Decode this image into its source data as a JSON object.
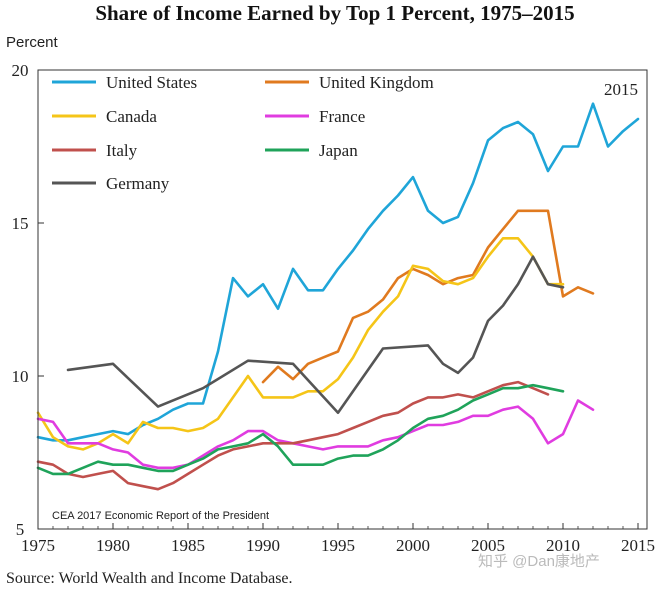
{
  "chart_data": {
    "type": "line",
    "title": "Share of Income Earned by Top 1 Percent, 1975–2015",
    "ylabel": "Percent",
    "xlabel": "",
    "xlim": [
      1975,
      2016
    ],
    "ylim": [
      5,
      20
    ],
    "xticks": [
      1975,
      1980,
      1985,
      1990,
      1995,
      2000,
      2005,
      2010,
      2015
    ],
    "yticks": [
      5,
      10,
      15,
      20
    ],
    "annotation": "2015",
    "note": "CEA 2017 Economic Report of the President",
    "source": "Source: World Wealth and Income Database.",
    "watermark": "知乎 @Dan康地产",
    "legend_position": "top-left",
    "series": [
      {
        "name": "United States",
        "color": "#1fa5d8",
        "x": [
          1975,
          1976,
          1977,
          1978,
          1979,
          1980,
          1981,
          1982,
          1983,
          1984,
          1985,
          1986,
          1987,
          1988,
          1989,
          1990,
          1991,
          1992,
          1993,
          1994,
          1995,
          1996,
          1997,
          1998,
          1999,
          2000,
          2001,
          2002,
          2003,
          2004,
          2005,
          2006,
          2007,
          2008,
          2009,
          2010,
          2011,
          2012,
          2013,
          2014,
          2015
        ],
        "values": [
          8.0,
          7.9,
          7.9,
          8.0,
          8.1,
          8.2,
          8.1,
          8.4,
          8.6,
          8.9,
          9.1,
          9.1,
          10.8,
          13.2,
          12.6,
          13.0,
          12.2,
          13.5,
          12.8,
          12.8,
          13.5,
          14.1,
          14.8,
          15.4,
          15.9,
          16.5,
          15.4,
          15.0,
          15.2,
          16.3,
          17.7,
          18.1,
          18.3,
          17.9,
          16.7,
          17.5,
          17.5,
          18.9,
          17.5,
          18.0,
          18.4
        ]
      },
      {
        "name": "United Kingdom",
        "color": "#e07a1f",
        "x": [
          1990,
          1991,
          1992,
          1993,
          1994,
          1995,
          1996,
          1997,
          1998,
          1999,
          2000,
          2001,
          2002,
          2003,
          2004,
          2005,
          2006,
          2007,
          2008,
          2009,
          2010,
          2011,
          2012
        ],
        "values": [
          9.8,
          10.3,
          9.9,
          10.4,
          10.6,
          10.8,
          11.9,
          12.1,
          12.5,
          13.2,
          13.5,
          13.3,
          13.0,
          13.2,
          13.3,
          14.2,
          14.8,
          15.4,
          15.4,
          15.4,
          12.6,
          12.9,
          12.7
        ]
      },
      {
        "name": "Canada",
        "color": "#f5c518",
        "x": [
          1975,
          1976,
          1977,
          1978,
          1979,
          1980,
          1981,
          1982,
          1983,
          1984,
          1985,
          1986,
          1987,
          1988,
          1989,
          1990,
          1991,
          1992,
          1993,
          1994,
          1995,
          1996,
          1997,
          1998,
          1999,
          2000,
          2001,
          2002,
          2003,
          2004,
          2005,
          2006,
          2007,
          2008,
          2009,
          2010
        ],
        "values": [
          8.8,
          8.0,
          7.7,
          7.6,
          7.8,
          8.1,
          7.8,
          8.5,
          8.3,
          8.3,
          8.2,
          8.3,
          8.6,
          9.3,
          10.0,
          9.3,
          9.3,
          9.3,
          9.5,
          9.5,
          9.9,
          10.6,
          11.5,
          12.1,
          12.6,
          13.6,
          13.5,
          13.1,
          13.0,
          13.2,
          13.9,
          14.5,
          14.5,
          13.9,
          13.0,
          13.0
        ]
      },
      {
        "name": "France",
        "color": "#e03ce0",
        "x": [
          1975,
          1976,
          1977,
          1978,
          1979,
          1980,
          1981,
          1982,
          1983,
          1984,
          1985,
          1986,
          1987,
          1988,
          1989,
          1990,
          1991,
          1992,
          1993,
          1994,
          1995,
          1996,
          1997,
          1998,
          1999,
          2000,
          2001,
          2002,
          2003,
          2004,
          2005,
          2006,
          2007,
          2008,
          2009,
          2010,
          2011,
          2012
        ],
        "values": [
          8.6,
          8.5,
          7.8,
          7.8,
          7.8,
          7.6,
          7.5,
          7.1,
          7.0,
          7.0,
          7.1,
          7.4,
          7.7,
          7.9,
          8.2,
          8.2,
          7.9,
          7.8,
          7.7,
          7.6,
          7.7,
          7.7,
          7.7,
          7.9,
          8.0,
          8.2,
          8.4,
          8.4,
          8.5,
          8.7,
          8.7,
          8.9,
          9.0,
          8.6,
          7.8,
          8.1,
          9.2,
          8.9
        ]
      },
      {
        "name": "Italy",
        "color": "#c0504d",
        "x": [
          1975,
          1976,
          1977,
          1978,
          1979,
          1980,
          1981,
          1982,
          1983,
          1984,
          1985,
          1986,
          1987,
          1988,
          1989,
          1990,
          1991,
          1992,
          1993,
          1994,
          1995,
          1996,
          1997,
          1998,
          1999,
          2000,
          2001,
          2002,
          2003,
          2004,
          2005,
          2006,
          2007,
          2008,
          2009
        ],
        "values": [
          7.2,
          7.1,
          6.8,
          6.7,
          6.8,
          6.9,
          6.5,
          6.4,
          6.3,
          6.5,
          6.8,
          7.1,
          7.4,
          7.6,
          7.7,
          7.8,
          7.8,
          7.8,
          7.9,
          8.0,
          8.1,
          8.3,
          8.5,
          8.7,
          8.8,
          9.1,
          9.3,
          9.3,
          9.4,
          9.3,
          9.5,
          9.7,
          9.8,
          9.6,
          9.4
        ]
      },
      {
        "name": "Japan",
        "color": "#1fa35a",
        "x": [
          1975,
          1976,
          1977,
          1978,
          1979,
          1980,
          1981,
          1982,
          1983,
          1984,
          1985,
          1986,
          1987,
          1988,
          1989,
          1990,
          1991,
          1992,
          1993,
          1994,
          1995,
          1996,
          1997,
          1998,
          1999,
          2000,
          2001,
          2002,
          2003,
          2004,
          2005,
          2006,
          2007,
          2008,
          2009,
          2010
        ],
        "values": [
          7.0,
          6.8,
          6.8,
          7.0,
          7.2,
          7.1,
          7.1,
          7.0,
          6.9,
          6.9,
          7.1,
          7.3,
          7.6,
          7.7,
          7.8,
          8.1,
          7.7,
          7.1,
          7.1,
          7.1,
          7.3,
          7.4,
          7.4,
          7.6,
          7.9,
          8.3,
          8.6,
          8.7,
          8.9,
          9.2,
          9.4,
          9.6,
          9.6,
          9.7,
          9.6,
          9.5
        ]
      },
      {
        "name": "Germany",
        "color": "#555555",
        "x": [
          1977,
          1980,
          1983,
          1986,
          1989,
          1992,
          1995,
          1998,
          2001,
          2002,
          2003,
          2004,
          2005,
          2006,
          2007,
          2008,
          2009,
          2010
        ],
        "values": [
          10.2,
          10.4,
          9.0,
          9.6,
          10.5,
          10.4,
          8.8,
          10.9,
          11.0,
          10.4,
          10.1,
          10.6,
          11.8,
          12.3,
          13.0,
          13.9,
          13.0,
          12.9
        ]
      }
    ]
  }
}
